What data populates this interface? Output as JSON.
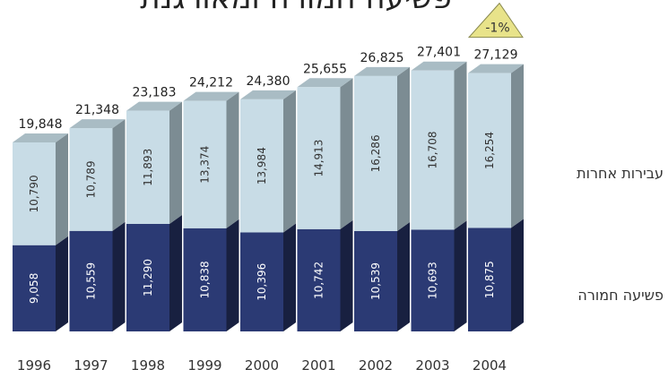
{
  "chart_data": {
    "type": "bar",
    "stacked": true,
    "title": "פשיעה חמורה ומאורגנת",
    "categories": [
      "1996",
      "1997",
      "1998",
      "1999",
      "2000",
      "2001",
      "2002",
      "2003",
      "2004"
    ],
    "series": [
      {
        "name": "פשיעה חמורה",
        "values": [
          9058,
          10559,
          11290,
          10838,
          10396,
          10742,
          10539,
          10693,
          10875
        ],
        "color": "#2b3a74"
      },
      {
        "name": "עבירות אחרות",
        "values": [
          10790,
          10789,
          11893,
          13374,
          13984,
          14913,
          16286,
          16708,
          16254
        ],
        "color": "#c8dce6"
      }
    ],
    "value_labels_series": [
      [
        "9,058",
        "10,559",
        "11,290",
        "10,838",
        "10,396",
        "10,742",
        "10,539",
        "10,693",
        "10,875"
      ],
      [
        "10,790",
        "10,789",
        "11,893",
        "13,374",
        "13,984",
        "14,913",
        "16,286",
        "16,708",
        "16,254"
      ]
    ],
    "total_labels": [
      "19,848",
      "21,348",
      "23,183",
      "24,212",
      "24,380",
      "25,655",
      "26,825",
      "27,401",
      "27,129"
    ],
    "annotation": {
      "text": "-1%",
      "category": "2004"
    },
    "ylim": [
      0,
      30000
    ],
    "grid": false
  }
}
